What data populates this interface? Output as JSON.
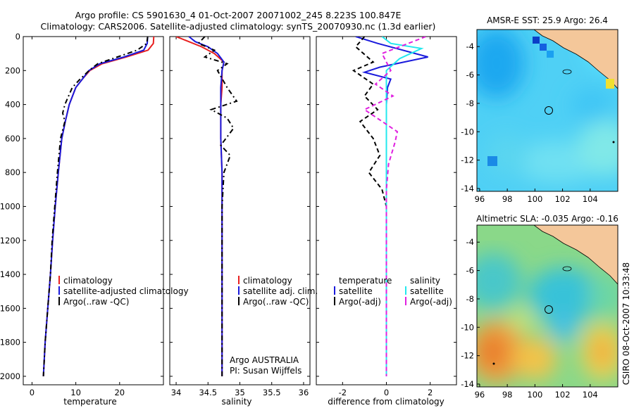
{
  "header": {
    "line1": "Argo profile: CS 5901630_4 01-Oct-2007 20071002_245 8.223S 100.847E",
    "line2": "Climatology: CARS2006. Satellite-adjusted climatology: synTS_20070930.nc (1.3d earlier)"
  },
  "footer": {
    "credit": "CSIRO 08-Oct-2007 10:33:48"
  },
  "colors": {
    "red": "#e82020",
    "blue": "#1a1adc",
    "black": "#000000",
    "cyan": "#22e8ee",
    "magenta": "#e020e0"
  },
  "chart_data": [
    {
      "type": "line",
      "xlabel": "temperature",
      "xlim": [
        -2,
        30
      ],
      "xticks": [
        0,
        10,
        20
      ],
      "ylim": [
        0,
        2050
      ],
      "yticks": [
        0,
        200,
        400,
        600,
        800,
        1000,
        1200,
        1400,
        1600,
        1800,
        2000
      ],
      "yreversed": true,
      "legend": [
        "climatology",
        "satellite-adjusted climatology",
        "Argo(..raw -QC)"
      ],
      "series": [
        {
          "name": "climatology",
          "color": "#e82020",
          "dash": "",
          "x": [
            27.8,
            27.7,
            26.5,
            21.5,
            16.0,
            13.2,
            11.5,
            10.0,
            8.5,
            7.6,
            6.8,
            6.0,
            5.3,
            4.7,
            4.2,
            3.6,
            3.0,
            2.6
          ],
          "y": [
            0,
            40,
            80,
            120,
            160,
            200,
            250,
            300,
            400,
            500,
            600,
            800,
            1000,
            1200,
            1400,
            1600,
            1800,
            2000
          ]
        },
        {
          "name": "satellite-adjusted climatology",
          "color": "#1a1adc",
          "dash": "",
          "x": [
            26.4,
            26.3,
            25.5,
            21.0,
            15.5,
            13.0,
            11.5,
            10.0,
            8.5,
            7.6,
            6.8,
            6.0,
            5.3,
            4.7,
            4.2,
            3.6,
            3.0,
            2.6
          ],
          "y": [
            0,
            40,
            80,
            120,
            160,
            200,
            250,
            300,
            400,
            500,
            600,
            800,
            1000,
            1200,
            1400,
            1600,
            1800,
            2000
          ]
        },
        {
          "name": "Argo(..raw -QC)",
          "color": "#000000",
          "dash": "7,4,2,4",
          "x": [
            26.4,
            26.2,
            24.0,
            19.5,
            15.0,
            13.0,
            11.0,
            9.2,
            7.5,
            7.0,
            7.5,
            6.5,
            5.8,
            4.6,
            4.2,
            3.6,
            3.0,
            2.6
          ],
          "y": [
            0,
            40,
            80,
            120,
            160,
            200,
            250,
            300,
            400,
            450,
            500,
            600,
            800,
            1200,
            1400,
            1600,
            1800,
            2000
          ]
        }
      ]
    },
    {
      "type": "line",
      "xlabel": "salinity",
      "xlim": [
        33.9,
        36.1
      ],
      "xticks": [
        34,
        34.5,
        35,
        35.5,
        36
      ],
      "ylim": [
        0,
        2050
      ],
      "yreversed": true,
      "legend": [
        "climatology",
        "satellite adj. clim.",
        "Argo(..raw -QC)"
      ],
      "annotation": [
        "Argo AUSTRALIA",
        "PI: Susan Wijffels"
      ],
      "series": [
        {
          "name": "climatology",
          "color": "#e82020",
          "dash": "",
          "x": [
            34.0,
            34.2,
            34.4,
            34.6,
            34.75,
            34.72,
            34.72,
            34.7,
            34.7,
            34.72,
            34.72,
            34.72,
            34.72,
            34.72
          ],
          "y": [
            0,
            30,
            60,
            100,
            150,
            200,
            300,
            400,
            600,
            800,
            1000,
            1400,
            1800,
            2000
          ]
        },
        {
          "name": "satellite adj. clim.",
          "color": "#1a1adc",
          "dash": "",
          "x": [
            34.2,
            34.3,
            34.5,
            34.65,
            34.75,
            34.72,
            34.7,
            34.7,
            34.7,
            34.72,
            34.72,
            34.72,
            34.72,
            34.72
          ],
          "y": [
            0,
            30,
            60,
            100,
            150,
            200,
            300,
            400,
            600,
            800,
            1000,
            1400,
            1800,
            2000
          ]
        },
        {
          "name": "Argo(..raw -QC)",
          "color": "#000000",
          "dash": "7,4,2,4",
          "x": [
            34.45,
            34.35,
            34.6,
            34.45,
            34.8,
            34.65,
            34.8,
            34.95,
            34.55,
            34.8,
            34.9,
            34.7,
            34.85,
            34.75,
            34.72,
            34.72
          ],
          "y": [
            0,
            40,
            80,
            120,
            160,
            200,
            300,
            380,
            430,
            480,
            540,
            640,
            700,
            800,
            1000,
            2000
          ]
        }
      ]
    },
    {
      "type": "line",
      "xlabel": "difference from climatology",
      "xlim": [
        -3.2,
        3.2
      ],
      "xticks": [
        -2,
        0,
        2
      ],
      "ylim": [
        0,
        2050
      ],
      "yreversed": true,
      "legend_left": {
        "title": "temperature",
        "items": [
          "satellite",
          "Argo(-adj)"
        ]
      },
      "legend_right": {
        "title": "salinity",
        "items": [
          "satellite",
          "Argo(-adj)"
        ]
      },
      "series": [
        {
          "name": "temperature satellite",
          "color": "#1a1adc",
          "dash": "",
          "x": [
            -1.4,
            -0.4,
            1.9,
            -0.3,
            -1.0,
            0.2,
            0.05,
            0,
            0,
            0,
            0
          ],
          "y": [
            0,
            40,
            120,
            180,
            210,
            250,
            300,
            400,
            600,
            1000,
            2000
          ]
        },
        {
          "name": "temperature Argo(-adj)",
          "color": "#000000",
          "dash": "6,4",
          "x": [
            -1.0,
            -1.4,
            -0.6,
            -1.5,
            -0.6,
            -1.0,
            -0.4,
            -1.2,
            -0.6,
            -0.3,
            -0.8,
            -0.2,
            0,
            0,
            0
          ],
          "y": [
            0,
            60,
            150,
            200,
            280,
            350,
            430,
            500,
            600,
            700,
            800,
            900,
            1000,
            1400,
            2000
          ]
        },
        {
          "name": "salinity satellite",
          "color": "#22e8ee",
          "dash": "",
          "x": [
            -0.2,
            0.2,
            1.6,
            0.6,
            0,
            0,
            0,
            0
          ],
          "y": [
            0,
            40,
            70,
            130,
            200,
            400,
            1000,
            2000
          ]
        },
        {
          "name": "salinity Argo(-adj)",
          "color": "#e020e0",
          "dash": "6,4",
          "x": [
            1.8,
            0.8,
            -0.2,
            0.2,
            -0.5,
            0.3,
            -1.0,
            0.5,
            0.4,
            0.1,
            0,
            0
          ],
          "y": [
            0,
            50,
            100,
            200,
            280,
            350,
            430,
            560,
            620,
            750,
            900,
            2000
          ]
        }
      ]
    },
    {
      "type": "heatmap",
      "title": "AMSR-E SST: 25.9 Argo: 26.4",
      "xlim": [
        95.8,
        106
      ],
      "xticks": [
        96,
        98,
        100,
        102,
        104
      ],
      "ylim": [
        -14.2,
        -2.8
      ],
      "yticks": [
        -4,
        -6,
        -8,
        -10,
        -12,
        -14
      ],
      "argo_position": {
        "lon": 100.85,
        "lat": -8.22
      }
    },
    {
      "type": "heatmap",
      "title": "Altimetric SLA: -0.035 Argo: -0.16",
      "xlim": [
        95.8,
        106
      ],
      "xticks": [
        96,
        98,
        100,
        102,
        104
      ],
      "ylim": [
        -14.2,
        -2.8
      ],
      "yticks": [
        -4,
        -6,
        -8,
        -10,
        -12,
        -14
      ],
      "argo_position": {
        "lon": 100.85,
        "lat": -8.22
      }
    }
  ]
}
